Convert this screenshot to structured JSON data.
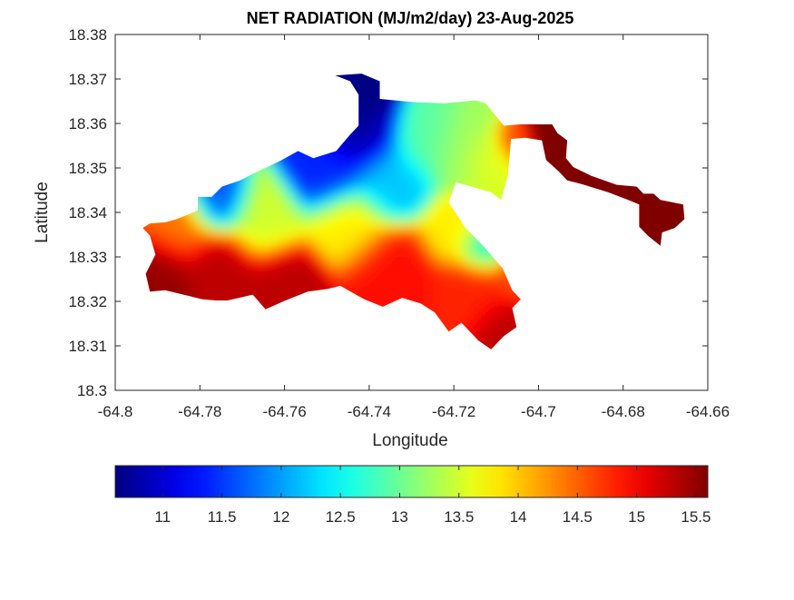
{
  "chart_data": {
    "type": "heatmap",
    "title": "NET RADIATION (MJ/m2/day) 23-Aug-2025",
    "xlabel": "Longitude",
    "ylabel": "Latitude",
    "xlim": [
      -64.8,
      -64.66
    ],
    "ylim": [
      18.3,
      18.38
    ],
    "xticks": [
      -64.8,
      -64.78,
      -64.76,
      -64.74,
      -64.72,
      -64.7,
      -64.68,
      -64.66
    ],
    "xtick_labels": [
      "-64.8",
      "-64.78",
      "-64.76",
      "-64.74",
      "-64.72",
      "-64.7",
      "-64.68",
      "-64.66"
    ],
    "yticks": [
      18.3,
      18.31,
      18.32,
      18.33,
      18.34,
      18.35,
      18.36,
      18.37,
      18.38
    ],
    "ytick_labels": [
      "18.3",
      "18.31",
      "18.32",
      "18.33",
      "18.34",
      "18.35",
      "18.36",
      "18.37",
      "18.38"
    ],
    "colormap": "jet",
    "colorbar": {
      "orientation": "horizontal",
      "placement": "bottom",
      "range": [
        10.6,
        15.6
      ],
      "ticks": [
        11,
        11.5,
        12,
        12.5,
        13,
        13.5,
        14,
        14.5,
        15,
        15.5
      ],
      "tick_labels": [
        "11",
        "11.5",
        "12",
        "12.5",
        "13",
        "13.5",
        "14",
        "14.5",
        "15",
        "15.5"
      ]
    },
    "grid": false,
    "region_outline": [
      [
        -64.7935,
        18.3365
      ],
      [
        -64.7918,
        18.3375
      ],
      [
        -64.788,
        18.3378
      ],
      [
        -64.7855,
        18.3385
      ],
      [
        -64.7828,
        18.3395
      ],
      [
        -64.7805,
        18.3405
      ],
      [
        -64.7805,
        18.3435
      ],
      [
        -64.7772,
        18.3435
      ],
      [
        -64.7748,
        18.3458
      ],
      [
        -64.7705,
        18.3472
      ],
      [
        -64.7668,
        18.349
      ],
      [
        -64.7612,
        18.3515
      ],
      [
        -64.7568,
        18.3538
      ],
      [
        -64.7532,
        18.3522
      ],
      [
        -64.7478,
        18.3538
      ],
      [
        -64.7445,
        18.3575
      ],
      [
        -64.7425,
        18.3595
      ],
      [
        -64.7425,
        18.3665
      ],
      [
        -64.7445,
        18.3695
      ],
      [
        -64.748,
        18.3708
      ],
      [
        -64.7418,
        18.3712
      ],
      [
        -64.7375,
        18.3695
      ],
      [
        -64.7375,
        18.3655
      ],
      [
        -64.7295,
        18.3648
      ],
      [
        -64.7222,
        18.3645
      ],
      [
        -64.7148,
        18.3652
      ],
      [
        -64.7125,
        18.3645
      ],
      [
        -64.7082,
        18.3595
      ],
      [
        -64.7042,
        18.3598
      ],
      [
        -64.7012,
        18.3598
      ],
      [
        -64.6968,
        18.3598
      ],
      [
        -64.6955,
        18.3578
      ],
      [
        -64.6932,
        18.3562
      ],
      [
        -64.6935,
        18.3522
      ],
      [
        -64.6918,
        18.3502
      ],
      [
        -64.6875,
        18.3482
      ],
      [
        -64.6815,
        18.3462
      ],
      [
        -64.6768,
        18.3458
      ],
      [
        -64.6752,
        18.3442
      ],
      [
        -64.6728,
        18.3442
      ],
      [
        -64.6712,
        18.3428
      ],
      [
        -64.6658,
        18.3418
      ],
      [
        -64.6655,
        18.3385
      ],
      [
        -64.6678,
        18.3365
      ],
      [
        -64.6708,
        18.3355
      ],
      [
        -64.6712,
        18.3325
      ],
      [
        -64.6742,
        18.3348
      ],
      [
        -64.6762,
        18.3368
      ],
      [
        -64.6762,
        18.3418
      ],
      [
        -64.6788,
        18.3428
      ],
      [
        -64.6835,
        18.3445
      ],
      [
        -64.6892,
        18.3462
      ],
      [
        -64.6932,
        18.3472
      ],
      [
        -64.6952,
        18.3492
      ],
      [
        -64.6982,
        18.3518
      ],
      [
        -64.6992,
        18.3562
      ],
      [
        -64.7032,
        18.3568
      ],
      [
        -64.7065,
        18.3565
      ],
      [
        -64.7072,
        18.3485
      ],
      [
        -64.7088,
        18.3428
      ],
      [
        -64.7112,
        18.3445
      ],
      [
        -64.7195,
        18.3468
      ],
      [
        -64.7212,
        18.3422
      ],
      [
        -64.7172,
        18.3365
      ],
      [
        -64.7128,
        18.3322
      ],
      [
        -64.7085,
        18.3275
      ],
      [
        -64.7062,
        18.3225
      ],
      [
        -64.7042,
        18.3205
      ],
      [
        -64.7062,
        18.3185
      ],
      [
        -64.7052,
        18.3142
      ],
      [
        -64.7082,
        18.3122
      ],
      [
        -64.7112,
        18.3092
      ],
      [
        -64.7142,
        18.3112
      ],
      [
        -64.7182,
        18.3152
      ],
      [
        -64.7212,
        18.3132
      ],
      [
        -64.7245,
        18.3175
      ],
      [
        -64.7278,
        18.3195
      ],
      [
        -64.7322,
        18.3208
      ],
      [
        -64.7368,
        18.3188
      ],
      [
        -64.7412,
        18.3205
      ],
      [
        -64.7468,
        18.3235
      ],
      [
        -64.7498,
        18.3228
      ],
      [
        -64.7545,
        18.3222
      ],
      [
        -64.7598,
        18.3202
      ],
      [
        -64.7645,
        18.3182
      ],
      [
        -64.7675,
        18.3215
      ],
      [
        -64.7735,
        18.3202
      ],
      [
        -64.7762,
        18.3202
      ],
      [
        -64.7795,
        18.3205
      ],
      [
        -64.7825,
        18.3212
      ],
      [
        -64.7882,
        18.3225
      ],
      [
        -64.7918,
        18.3222
      ],
      [
        -64.7928,
        18.3262
      ],
      [
        -64.7905,
        18.3305
      ],
      [
        -64.7918,
        18.3348
      ]
    ]
  }
}
